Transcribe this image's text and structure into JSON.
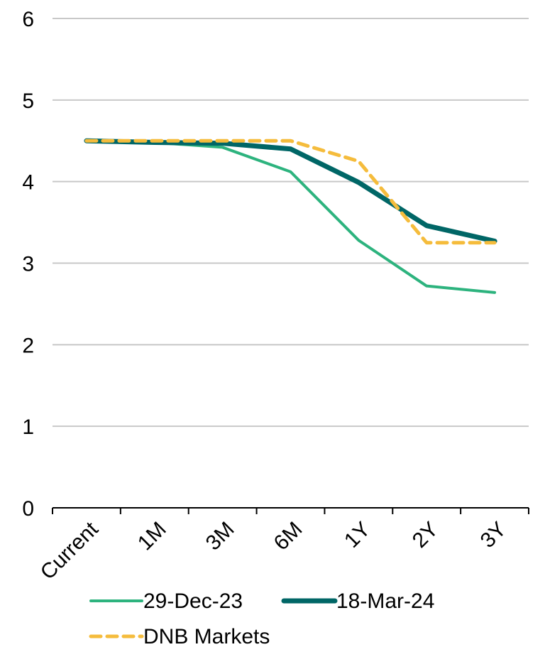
{
  "chart_data": {
    "type": "line",
    "categories": [
      "Current",
      "1M",
      "3M",
      "6M",
      "1Y",
      "2Y",
      "3Y"
    ],
    "ylim": [
      0,
      6
    ],
    "yticks": [
      0,
      1,
      2,
      3,
      4,
      5,
      6
    ],
    "grid": true,
    "legend_position": "bottom",
    "series": [
      {
        "name": "29-Dec-23",
        "values": [
          4.5,
          4.48,
          4.42,
          4.12,
          3.28,
          2.72,
          2.64
        ],
        "color": "#2db37e",
        "style": "solid"
      },
      {
        "name": "18-Mar-24",
        "values": [
          4.5,
          4.48,
          4.47,
          4.4,
          3.99,
          3.46,
          3.27
        ],
        "color": "#006666",
        "style": "solid-thick"
      },
      {
        "name": "DNB Markets",
        "values": [
          4.5,
          4.5,
          4.5,
          4.5,
          4.25,
          3.25,
          3.25
        ],
        "color": "#f5bc3c",
        "style": "dashed"
      }
    ]
  }
}
